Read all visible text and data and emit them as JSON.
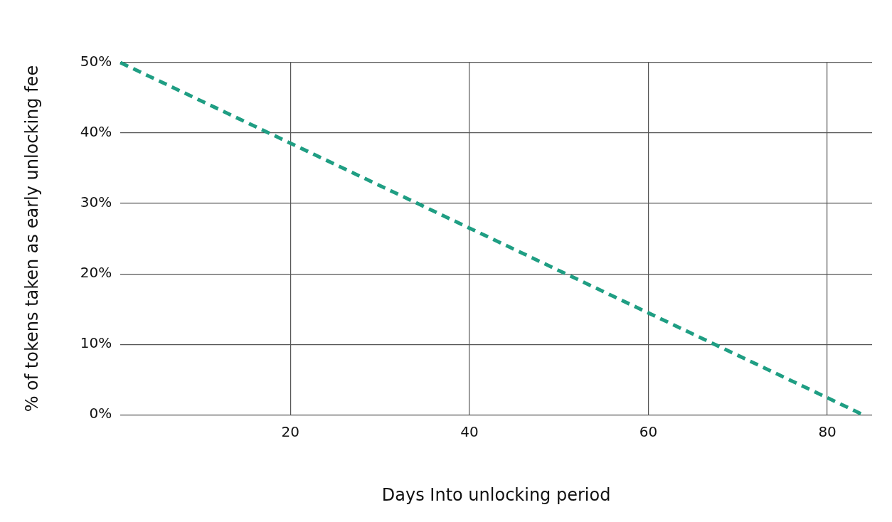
{
  "chart_data": {
    "type": "line",
    "xlabel": "Days Into unlocking period",
    "ylabel": "% of tokens taken as early unlocking fee",
    "x": [
      1,
      84
    ],
    "series": [
      {
        "color": "#1f9e83",
        "values": [
          50,
          0
        ]
      }
    ],
    "xlim": [
      1,
      85
    ],
    "xticks": [
      20,
      40,
      60,
      80
    ],
    "ylim": [
      0,
      50
    ],
    "yticks": [
      {
        "value": 0,
        "label": "0%"
      },
      {
        "value": 10,
        "label": "10%"
      },
      {
        "value": 20,
        "label": "20%"
      },
      {
        "value": 30,
        "label": "30%"
      },
      {
        "value": 40,
        "label": "40%"
      },
      {
        "value": 50,
        "label": "50%"
      }
    ],
    "grid": true,
    "legend": false,
    "marker": "none",
    "line_style": "dashed"
  }
}
